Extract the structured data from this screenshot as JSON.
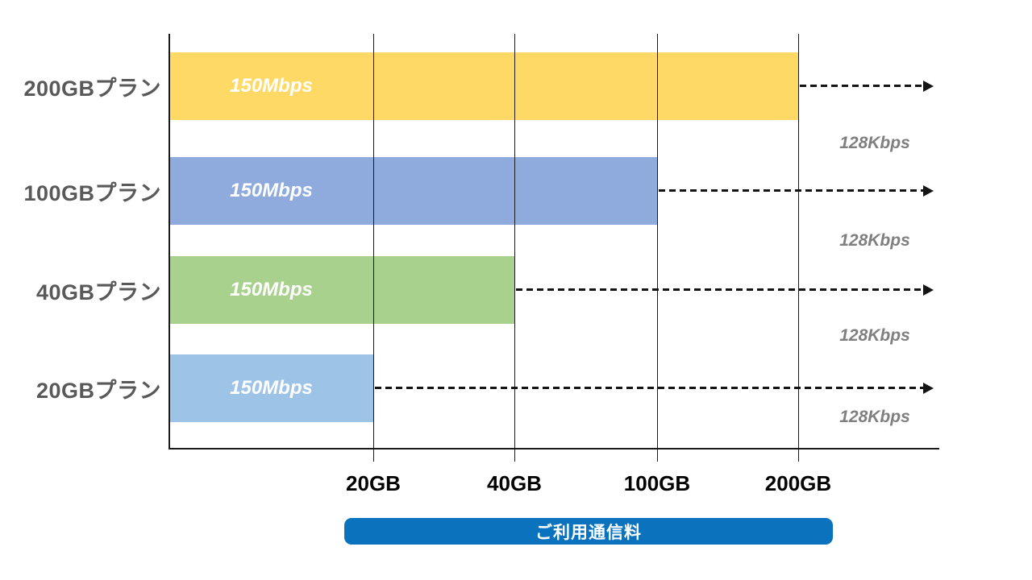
{
  "chart_data": {
    "type": "bar",
    "orientation": "horizontal",
    "title": "",
    "x_axis": {
      "ticks": [
        {
          "label": "20GB",
          "value": 20
        },
        {
          "label": "40GB",
          "value": 40
        },
        {
          "label": "100GB",
          "value": 100
        },
        {
          "label": "200GB",
          "value": 200
        }
      ],
      "axis_label": "ご利用通信料",
      "axis_label_bg": "#0b72be"
    },
    "rows": [
      {
        "plan": "200GBプラン",
        "limit": "200GB",
        "limit_gb": 200,
        "speed_within_limit": "150Mbps",
        "speed_after_limit": "128Kbps",
        "bar_color": "#FFD966"
      },
      {
        "plan": "100GBプラン",
        "limit": "100GB",
        "limit_gb": 100,
        "speed_within_limit": "150Mbps",
        "speed_after_limit": "128Kbps",
        "bar_color": "#8FAADC"
      },
      {
        "plan": "40GBプラン",
        "limit": "40GB",
        "limit_gb": 40,
        "speed_within_limit": "150Mbps",
        "speed_after_limit": "128Kbps",
        "bar_color": "#A9D18E"
      },
      {
        "plan": "20GBプラン",
        "limit": "20GB",
        "limit_gb": 20,
        "speed_within_limit": "150Mbps",
        "speed_after_limit": "128Kbps",
        "bar_color": "#9DC3E6"
      }
    ],
    "styles": {
      "grid_color": "#1a1a1a",
      "plan_label_color": "#595959",
      "bar_text_color": "#ffffff",
      "after_speed_color": "#7f7f7f"
    }
  }
}
